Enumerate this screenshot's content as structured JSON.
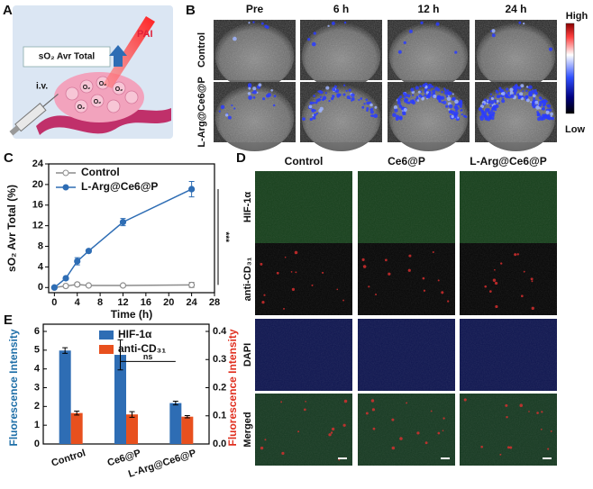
{
  "panels": {
    "a": {
      "letter": "A",
      "label": "PAI",
      "indicator": "sO₂ Avr Total",
      "injection": "i.v.",
      "bubble": "O₂"
    },
    "b": {
      "letter": "B",
      "columns": [
        "Pre",
        "6 h",
        "12 h",
        "24 h"
      ],
      "rows": [
        "Control",
        "L-Arg@Ce6@P"
      ],
      "colorbar_high": "High",
      "colorbar_low": "Low"
    },
    "c": {
      "letter": "C"
    },
    "d": {
      "letter": "D",
      "columns": [
        "Control",
        "Ce6@P",
        "L-Arg@Ce6@P"
      ],
      "rows": [
        "HIF-1α",
        "anti-CD₃₁",
        "DAPI",
        "Merged"
      ]
    },
    "e": {
      "letter": "E"
    }
  },
  "chart_data": [
    {
      "type": "line",
      "x_label": "Time (h)",
      "y_label": "sO₂ Avr Total (%)",
      "x": [
        0,
        2,
        4,
        6,
        12,
        24
      ],
      "series": [
        {
          "name": "Control",
          "color": "#8c8c8c",
          "marker": "open",
          "values": [
            0,
            0.3,
            0.6,
            0.4,
            0.4,
            0.5
          ],
          "errors": [
            0.1,
            0.2,
            0.3,
            0.2,
            0.2,
            0.5
          ]
        },
        {
          "name": "L-Arg@Ce6@P",
          "color": "#2e6db4",
          "marker": "filled",
          "values": [
            0,
            1.8,
            5.1,
            7.1,
            12.7,
            19.1
          ],
          "errors": [
            0.1,
            0.3,
            0.7,
            0.3,
            0.7,
            1.5
          ]
        }
      ],
      "xlim": [
        -1,
        28
      ],
      "ylim": [
        -1,
        24
      ],
      "xticks": [
        0,
        4,
        8,
        12,
        16,
        20,
        24,
        28
      ],
      "yticks": [
        0,
        4,
        8,
        12,
        16,
        20,
        24
      ],
      "legend": "upper left",
      "annotation": "***"
    },
    {
      "type": "bar",
      "categories": [
        "Control",
        "Ce6@P",
        "L-Arg@Ce6@P"
      ],
      "series": [
        {
          "name": "HIF-1α",
          "color": "#2e6db4",
          "values": [
            4.98,
            4.75,
            2.18
          ],
          "errors": [
            0.15,
            0.8,
            0.1
          ]
        },
        {
          "name": "anti-CD₃₁",
          "color": "#e8501e",
          "axis": "y2",
          "values": [
            0.11,
            0.105,
            0.097
          ],
          "errors": [
            0.007,
            0.01,
            0.004
          ]
        }
      ],
      "y_label": "Fluorescence Intensity",
      "y_label_color": "#1f6fa8",
      "y2_label": "Fluorescence Intensity",
      "y2_label_color": "#e03020",
      "ylim": [
        0,
        6
      ],
      "yticks": [
        0,
        1,
        2,
        3,
        4,
        5,
        6
      ],
      "y2lim": [
        0,
        0.4
      ],
      "y2ticks": [
        {
          "value": 0,
          "label": "0.0"
        },
        0.1,
        0.2,
        0.3,
        0.4
      ],
      "legend": "upper center",
      "annotation": "ns"
    }
  ]
}
